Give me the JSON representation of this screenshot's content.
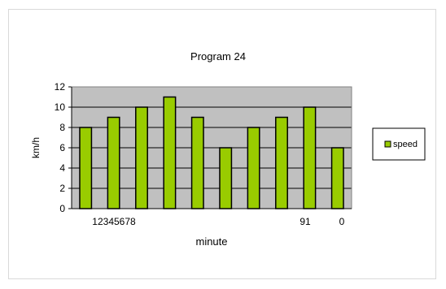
{
  "chart_data": {
    "type": "bar",
    "title": "Program 24",
    "xlabel": "minute",
    "ylabel": "km/h",
    "values": [
      8,
      9,
      10,
      11,
      9,
      6,
      8,
      9,
      10,
      6
    ],
    "x_tick_labels": [
      "12345678",
      "91",
      "0"
    ],
    "ylim": [
      0,
      12
    ],
    "y_ticks": [
      0,
      2,
      4,
      6,
      8,
      10,
      12
    ],
    "grid": true,
    "legend_position": "right",
    "series": [
      {
        "name": "speed",
        "values": [
          8,
          9,
          10,
          11,
          9,
          6,
          8,
          9,
          10,
          6
        ]
      }
    ],
    "colors": {
      "bar": "#99cc00",
      "bar_stroke": "#000000",
      "plot_bg": "#c0c0c0",
      "gridline": "#000000"
    }
  }
}
